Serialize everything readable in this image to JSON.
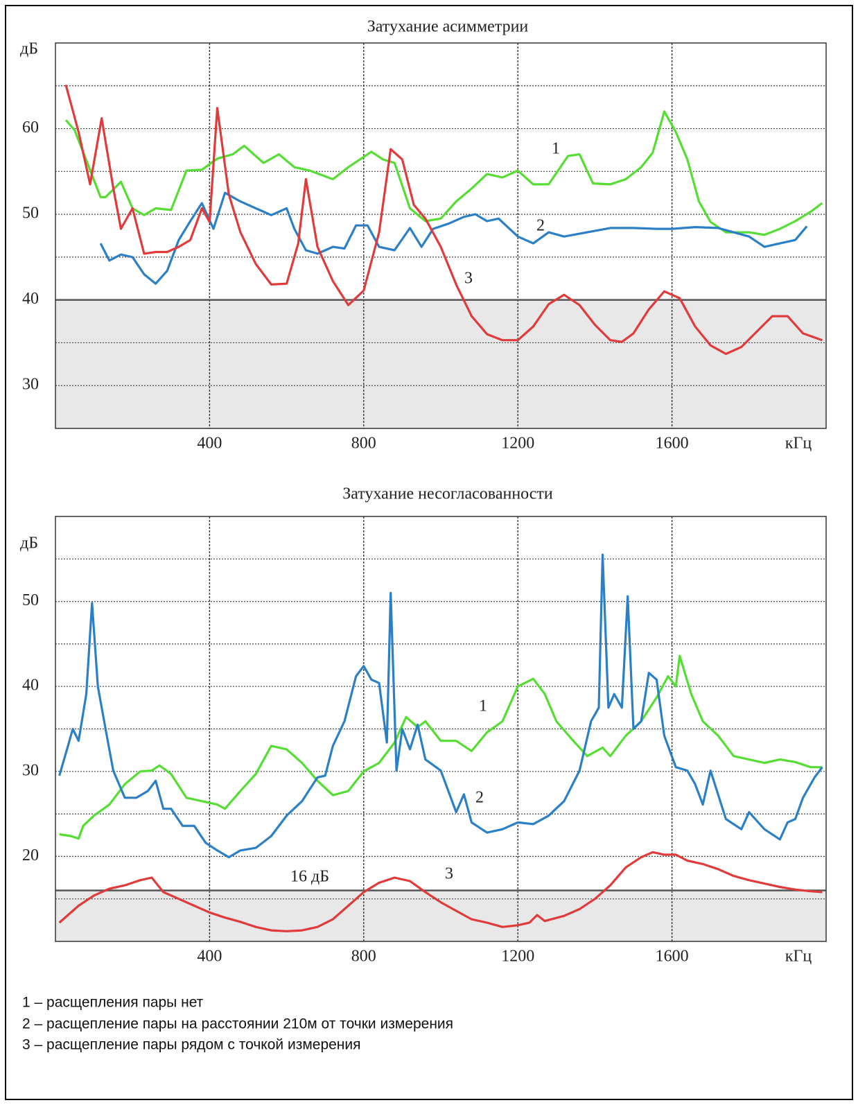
{
  "chart_data": [
    {
      "type": "line",
      "title": "Затухание асимметрии",
      "y_label": "дБ",
      "x_label": "кГц",
      "xlim": [
        0,
        2000
      ],
      "xticks": [
        400,
        800,
        1200,
        1600
      ],
      "ylim": [
        25,
        70
      ],
      "yticks": [
        30,
        40,
        50,
        60
      ],
      "minor_yticks": [
        35,
        45,
        55,
        65
      ],
      "threshold": 40,
      "grid": true,
      "series": [
        {
          "name": "1",
          "color": "#55dd33",
          "x": [
            27,
            50,
            117,
            130,
            170,
            200,
            230,
            260,
            300,
            340,
            380,
            420,
            460,
            490,
            540,
            580,
            620,
            660,
            720,
            760,
            820,
            850,
            880,
            920,
            960,
            1000,
            1040,
            1080,
            1120,
            1160,
            1200,
            1240,
            1280,
            1330,
            1360,
            1395,
            1440,
            1480,
            1520,
            1550,
            1580,
            1610,
            1640,
            1670,
            1700,
            1740,
            1800,
            1840,
            1880,
            1920,
            1960,
            1990
          ],
          "values": [
            61,
            59.8,
            52,
            52,
            53.8,
            50.7,
            49.9,
            50.7,
            50.5,
            55.1,
            55.2,
            56.5,
            57,
            58,
            56,
            57,
            55.5,
            55.1,
            54.1,
            55.5,
            57.3,
            56.4,
            56,
            50.7,
            49.2,
            49.5,
            51.5,
            53,
            54.7,
            54.3,
            55.1,
            53.5,
            53.5,
            56.8,
            57,
            53.6,
            53.5,
            54.1,
            55.5,
            57.2,
            62,
            59.6,
            56.4,
            51.5,
            49.1,
            47.9,
            47.9,
            47.6,
            48.3,
            49.2,
            50.3,
            51.3
          ]
        },
        {
          "name": "2",
          "color": "#2a7fc6",
          "x": [
            117,
            140,
            170,
            200,
            230,
            260,
            290,
            320,
            350,
            380,
            410,
            440,
            480,
            520,
            560,
            600,
            620,
            650,
            680,
            720,
            750,
            780,
            810,
            840,
            880,
            920,
            950,
            980,
            1020,
            1060,
            1090,
            1120,
            1150,
            1200,
            1240,
            1280,
            1320,
            1380,
            1440,
            1500,
            1560,
            1600,
            1660,
            1720,
            1760,
            1800,
            1840,
            1880,
            1920,
            1950
          ],
          "values": [
            46.6,
            44.6,
            45.3,
            45,
            43,
            41.9,
            43.4,
            47,
            49.2,
            51.3,
            48.3,
            52.5,
            51.5,
            50.7,
            49.9,
            50.7,
            48.3,
            45.8,
            45.4,
            46.2,
            46,
            48.7,
            48.7,
            46.2,
            45.8,
            48.4,
            46.2,
            48.3,
            48.9,
            49.7,
            50,
            49.2,
            49.5,
            47.4,
            46.6,
            47.9,
            47.4,
            47.9,
            48.4,
            48.4,
            48.3,
            48.3,
            48.5,
            48.4,
            47.9,
            47.4,
            46.2,
            46.6,
            47,
            48.6
          ]
        },
        {
          "name": "3",
          "color": "#e03a3a",
          "x": [
            27,
            60,
            90,
            120,
            150,
            170,
            200,
            230,
            260,
            290,
            320,
            350,
            380,
            400,
            420,
            450,
            480,
            520,
            560,
            600,
            630,
            650,
            680,
            720,
            760,
            800,
            840,
            870,
            900,
            930,
            960,
            1000,
            1040,
            1080,
            1120,
            1160,
            1200,
            1240,
            1280,
            1320,
            1360,
            1400,
            1440,
            1470,
            1500,
            1540,
            1580,
            1620,
            1660,
            1700,
            1740,
            1780,
            1820,
            1860,
            1900,
            1940,
            1990
          ],
          "values": [
            65.1,
            59.6,
            53.5,
            61.2,
            53.1,
            48.3,
            50.7,
            45.4,
            45.6,
            45.6,
            46.2,
            47,
            50.7,
            49.1,
            62.4,
            52.3,
            47.9,
            44.2,
            41.8,
            41.9,
            46.6,
            54.1,
            46.2,
            42.2,
            39.4,
            41.1,
            47.9,
            57.6,
            56.4,
            51.1,
            49.5,
            46.2,
            41.8,
            38.1,
            36,
            35.3,
            35.3,
            36.9,
            39.5,
            40.6,
            39.4,
            37.1,
            35.3,
            35.1,
            36.1,
            38.9,
            41,
            40.2,
            36.9,
            34.7,
            33.7,
            34.5,
            36.3,
            38.1,
            38.1,
            36.1,
            35.3
          ]
        }
      ]
    },
    {
      "type": "line",
      "title": "Затухание несогласованности",
      "y_label": "дБ",
      "x_label": "кГц",
      "xlim": [
        0,
        2000
      ],
      "xticks": [
        400,
        800,
        1200,
        1600
      ],
      "ylim": [
        10,
        60
      ],
      "yticks": [
        20,
        30,
        40,
        50
      ],
      "minor_yticks": [
        15,
        25,
        35,
        45,
        55
      ],
      "threshold": 16,
      "threshold_label": "16 дБ",
      "grid": true,
      "series": [
        {
          "name": "1",
          "color": "#55dd33",
          "x": [
            10,
            40,
            60,
            72,
            100,
            140,
            180,
            220,
            250,
            270,
            300,
            340,
            380,
            420,
            440,
            480,
            520,
            560,
            600,
            640,
            680,
            720,
            760,
            800,
            840,
            880,
            910,
            940,
            960,
            1000,
            1040,
            1080,
            1120,
            1160,
            1200,
            1240,
            1270,
            1300,
            1340,
            1380,
            1420,
            1440,
            1480,
            1520,
            1560,
            1590,
            1610,
            1620,
            1650,
            1680,
            1720,
            1760,
            1800,
            1840,
            1880,
            1920,
            1960,
            1990
          ],
          "values": [
            22.6,
            22.4,
            22.1,
            23.6,
            24.8,
            26.1,
            28.5,
            30,
            30.1,
            30.7,
            29.7,
            26.9,
            26.5,
            26.1,
            25.6,
            27.7,
            29.7,
            33,
            32.6,
            31,
            28.9,
            27.2,
            27.7,
            30,
            31,
            33.4,
            36.4,
            35.2,
            35.9,
            33.6,
            33.6,
            32.4,
            34.6,
            35.9,
            40,
            40.9,
            39.1,
            35.9,
            33.8,
            31.8,
            32.8,
            31.8,
            34.2,
            35.9,
            38.7,
            41.2,
            40,
            43.6,
            39.1,
            35.9,
            34.2,
            31.8,
            31.4,
            31,
            31.4,
            31.1,
            30.5,
            30.5
          ]
        },
        {
          "name": "2",
          "color": "#2a7fc6",
          "x": [
            10,
            30,
            45,
            60,
            80,
            95,
            110,
            130,
            150,
            180,
            210,
            240,
            260,
            280,
            300,
            330,
            360,
            390,
            420,
            450,
            480,
            520,
            560,
            600,
            640,
            680,
            700,
            720,
            750,
            780,
            800,
            820,
            840,
            860,
            870,
            885,
            900,
            920,
            940,
            960,
            1000,
            1040,
            1060,
            1080,
            1120,
            1160,
            1200,
            1240,
            1280,
            1320,
            1360,
            1390,
            1410,
            1420,
            1435,
            1450,
            1470,
            1485,
            1500,
            1520,
            1540,
            1560,
            1580,
            1610,
            1640,
            1660,
            1680,
            1700,
            1740,
            1780,
            1800,
            1840,
            1880,
            1900,
            1920,
            1940,
            1970,
            1990
          ],
          "values": [
            29.5,
            32.6,
            35,
            33.6,
            39.1,
            49.8,
            40,
            35,
            30.1,
            26.9,
            26.9,
            27.7,
            28.9,
            25.6,
            25.6,
            23.6,
            23.6,
            21.6,
            20.7,
            19.9,
            20.7,
            21,
            22.4,
            24.8,
            26.5,
            29.3,
            29.5,
            33,
            35.9,
            41.2,
            42.4,
            40.8,
            40.4,
            33.4,
            51,
            30.1,
            35,
            32.6,
            35.5,
            31.4,
            30.1,
            25.2,
            27.3,
            24,
            22.8,
            23.2,
            24,
            23.8,
            24.8,
            26.5,
            30.1,
            35.9,
            37.5,
            55.5,
            37.5,
            39.1,
            37.5,
            50.6,
            35,
            35.9,
            41.6,
            40.8,
            34.2,
            30.5,
            30.1,
            28.5,
            26.1,
            30.1,
            24.4,
            23.2,
            25.2,
            23.2,
            22,
            24,
            24.4,
            26.9,
            29.3,
            30.5
          ]
        },
        {
          "name": "3",
          "color": "#e03a3a",
          "x": [
            10,
            60,
            100,
            140,
            180,
            220,
            250,
            280,
            320,
            360,
            400,
            440,
            480,
            520,
            560,
            600,
            640,
            680,
            720,
            760,
            800,
            840,
            880,
            920,
            960,
            1000,
            1040,
            1080,
            1120,
            1160,
            1200,
            1230,
            1250,
            1270,
            1320,
            1360,
            1400,
            1440,
            1480,
            1520,
            1550,
            1580,
            1610,
            1640,
            1680,
            1720,
            1760,
            1800,
            1840,
            1880,
            1920,
            1960,
            1990
          ],
          "values": [
            12.2,
            14.2,
            15.4,
            16.2,
            16.6,
            17.2,
            17.5,
            15.8,
            15,
            14.2,
            13.4,
            12.8,
            12.3,
            11.7,
            11.3,
            11.2,
            11.3,
            11.7,
            12.6,
            14.2,
            15.8,
            16.9,
            17.5,
            17.1,
            15.8,
            14.6,
            13.6,
            12.6,
            12.2,
            11.7,
            11.9,
            12.2,
            13.1,
            12.4,
            13,
            13.8,
            15,
            16.6,
            18.7,
            19.9,
            20.5,
            20.2,
            20.2,
            19.5,
            19.1,
            18.5,
            17.7,
            17.2,
            16.8,
            16.4,
            16.1,
            15.9,
            15.8
          ]
        }
      ]
    }
  ],
  "legend": [
    "1 – расщепления пары нет",
    "2 – расщепление пары на расстоянии 210м от точки измерения",
    "3 – расщепление пары рядом с точкой измерения"
  ]
}
